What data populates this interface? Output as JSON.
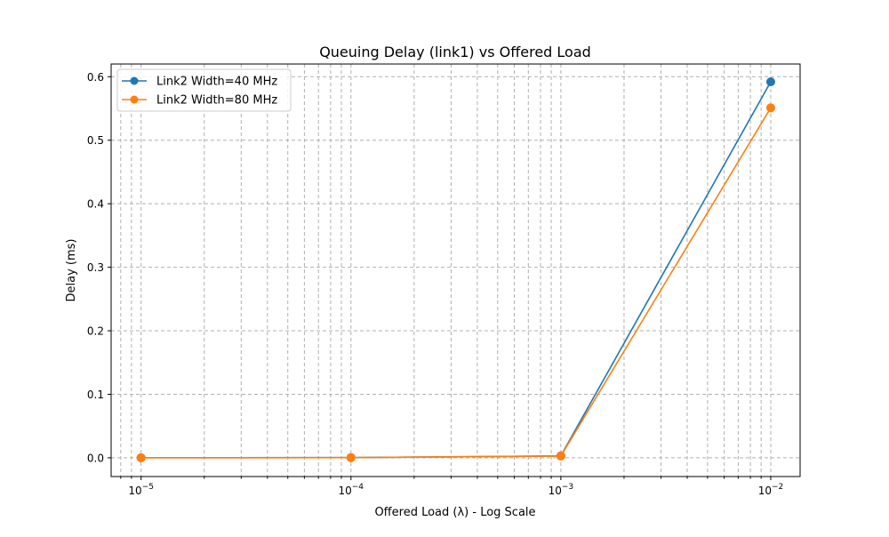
{
  "chart_data": {
    "type": "line",
    "title": "Queuing Delay (link1) vs Offered Load",
    "xlabel": "Offered Load (λ) - Log Scale",
    "ylabel": "Delay (ms)",
    "xscale": "log",
    "xlim": [
      7.2e-06,
      0.0138
    ],
    "ylim": [
      -0.0295,
      0.62
    ],
    "grid": true,
    "grid_style": "dashed, major and minor",
    "legend_position": "upper-left",
    "x": [
      1e-05,
      0.0001,
      0.001,
      0.01
    ],
    "xticks": [
      {
        "value": 1e-05,
        "base": "10",
        "exp": "−5"
      },
      {
        "value": 0.0001,
        "base": "10",
        "exp": "−4"
      },
      {
        "value": 0.001,
        "base": "10",
        "exp": "−3"
      },
      {
        "value": 0.01,
        "base": "10",
        "exp": "−2"
      }
    ],
    "yticks": [
      {
        "value": 0.0,
        "label": "0.0"
      },
      {
        "value": 0.1,
        "label": "0.1"
      },
      {
        "value": 0.2,
        "label": "0.2"
      },
      {
        "value": 0.3,
        "label": "0.3"
      },
      {
        "value": 0.4,
        "label": "0.4"
      },
      {
        "value": 0.5,
        "label": "0.5"
      },
      {
        "value": 0.6,
        "label": "0.6"
      }
    ],
    "series": [
      {
        "name": "Link2 Width=40 MHz",
        "color": "#1f77b4",
        "marker": "circle",
        "values": [
          0.0001,
          0.0003,
          0.003,
          0.592
        ]
      },
      {
        "name": "Link2 Width=80 MHz",
        "color": "#ff7f0e",
        "marker": "circle",
        "values": [
          0.0001,
          0.0003,
          0.0028,
          0.551
        ]
      }
    ]
  }
}
